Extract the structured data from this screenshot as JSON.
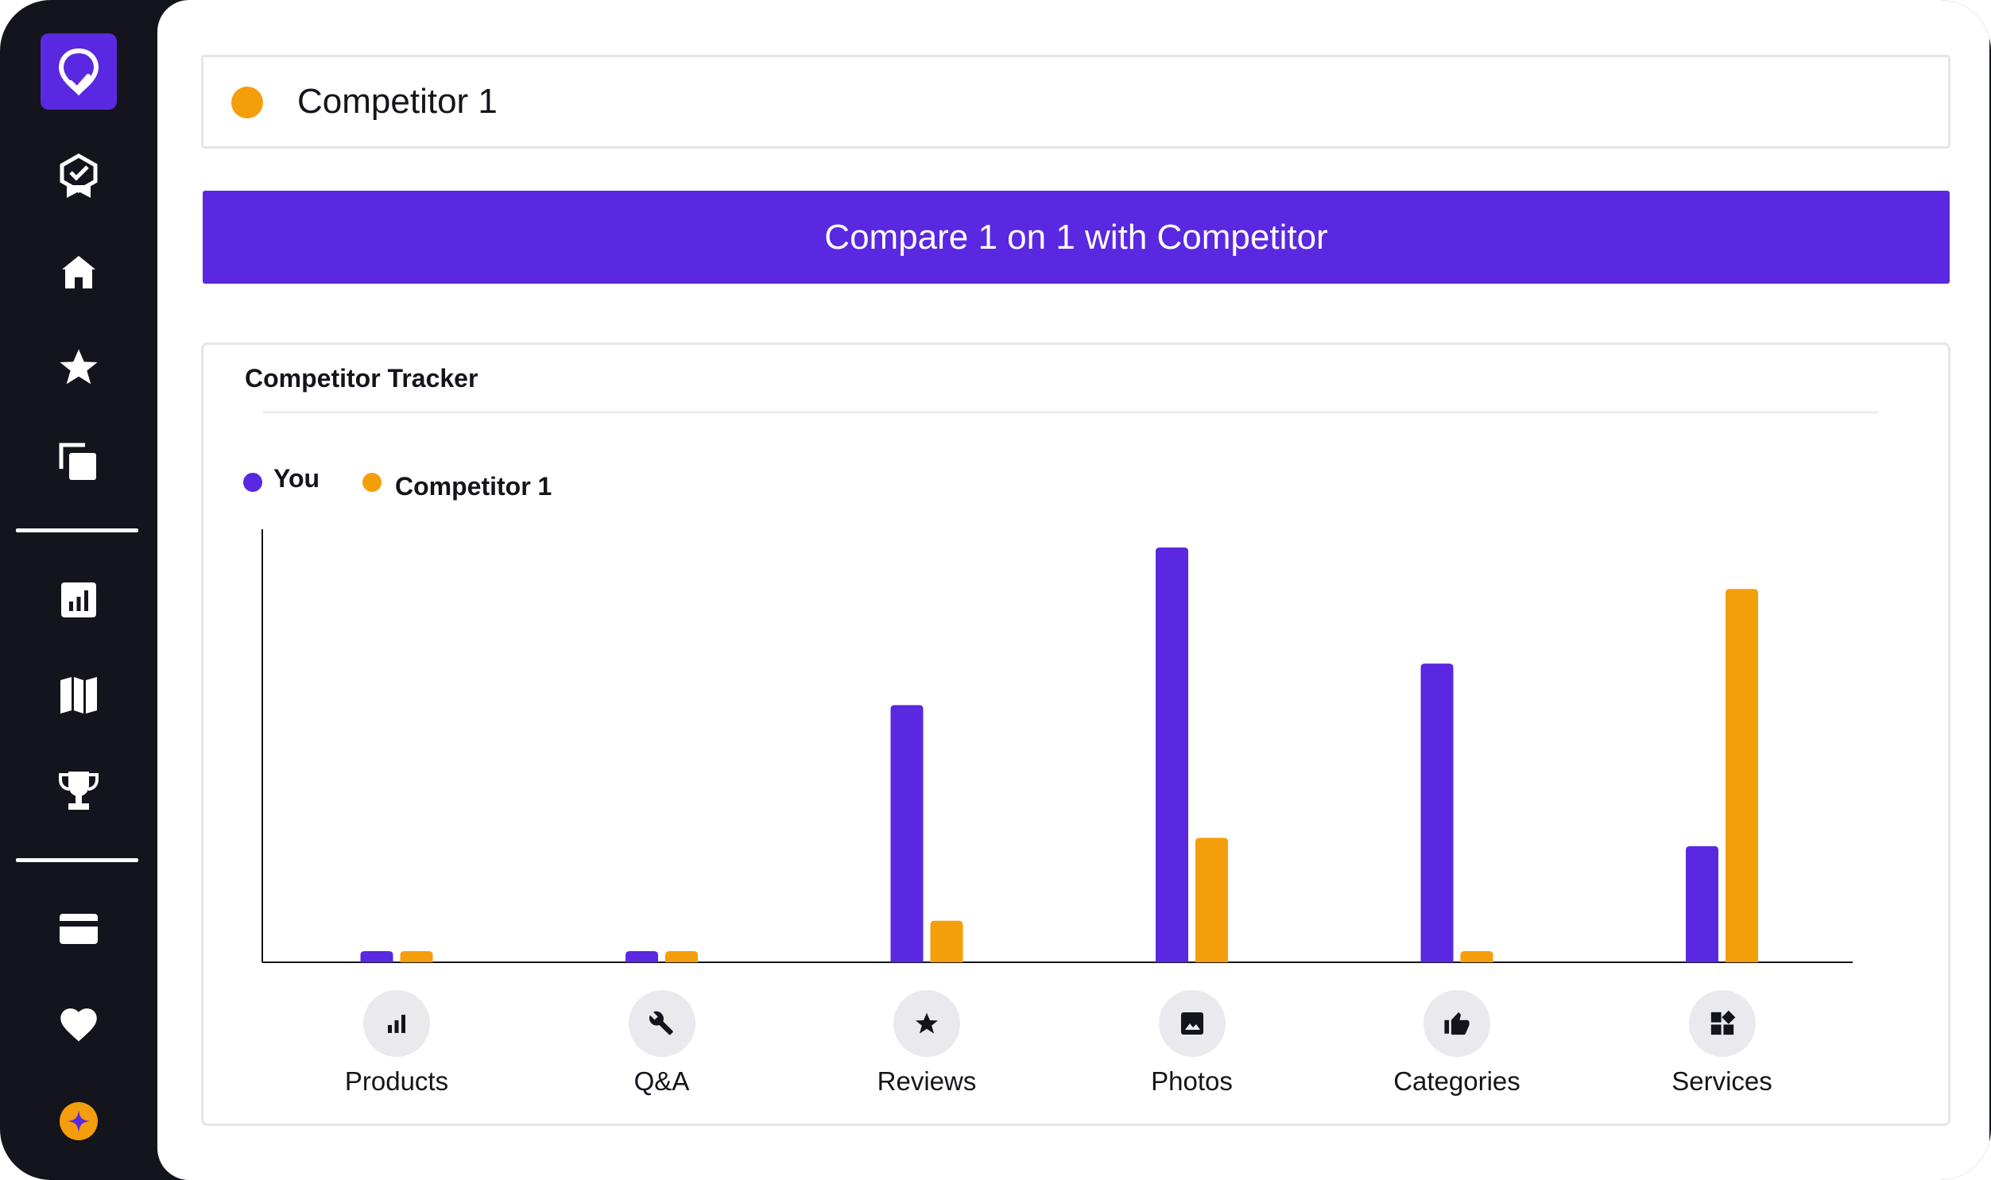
{
  "sidebar": {
    "items": [
      {
        "icon": "badge-check-icon"
      },
      {
        "icon": "home-icon"
      },
      {
        "icon": "star-icon"
      },
      {
        "icon": "copy-icon"
      },
      {
        "icon": "analytics-icon"
      },
      {
        "icon": "map-icon"
      },
      {
        "icon": "trophy-icon"
      },
      {
        "icon": "credit-card-icon"
      },
      {
        "icon": "heart-icon"
      },
      {
        "icon": "sparkle-icon"
      }
    ]
  },
  "competitor": {
    "name": "Competitor 1",
    "color": "#f59e0b"
  },
  "compare_button": {
    "label": "Compare 1 on 1 with Competitor"
  },
  "tracker": {
    "title": "Competitor Tracker"
  },
  "colors": {
    "you": "#5a28e0",
    "competitor": "#f59e0b",
    "accent": "#5a28e0"
  },
  "chart_data": {
    "type": "bar",
    "categories": [
      "Products",
      "Q&A",
      "Reviews",
      "Photos",
      "Categories",
      "Services"
    ],
    "category_icons": [
      "bar-chart-icon",
      "wrench-icon",
      "star-icon",
      "image-icon",
      "thumbs-up-icon",
      "widgets-icon"
    ],
    "series": [
      {
        "name": "You",
        "color": "#5a28e0",
        "values": [
          2,
          2,
          62,
          100,
          72,
          28
        ]
      },
      {
        "name": "Competitor 1",
        "color": "#f59e0b",
        "values": [
          2,
          2,
          10,
          30,
          2,
          90
        ]
      }
    ],
    "ylim": [
      0,
      100
    ],
    "grid": false,
    "legend": "top-left",
    "xlabel": "",
    "ylabel": ""
  }
}
